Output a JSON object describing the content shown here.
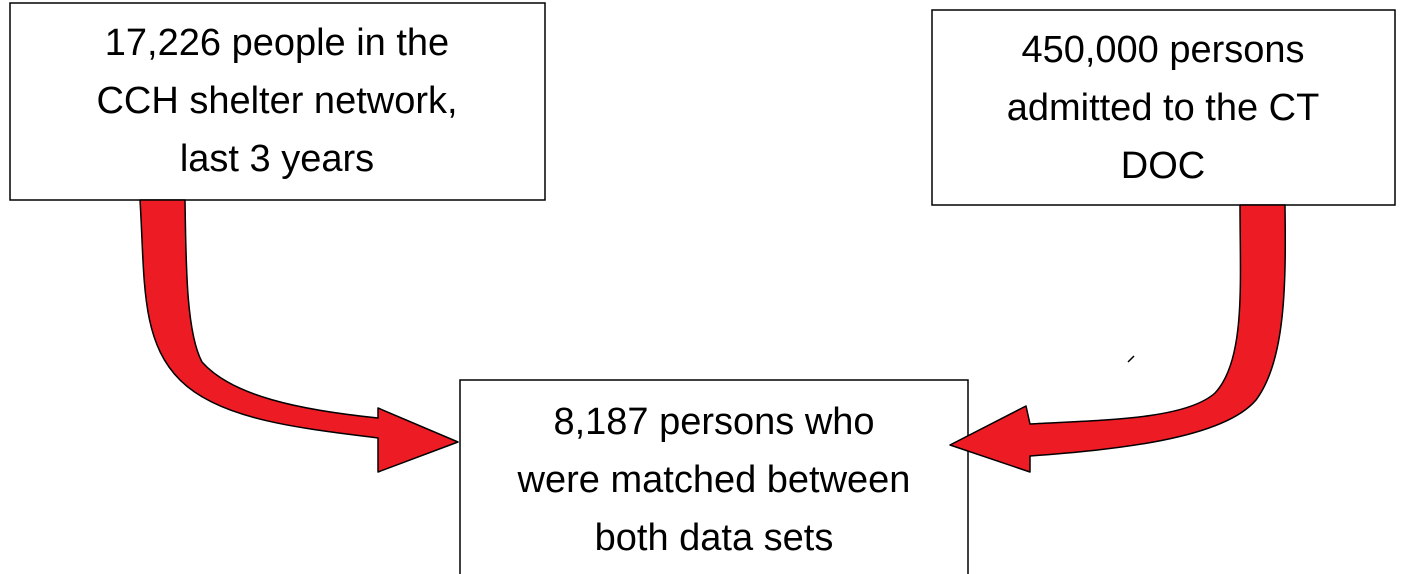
{
  "nodes": [
    {
      "lines": [
        "17,226 people in the",
        "CCH shelter network,",
        "last 3 years"
      ]
    },
    {
      "lines": [
        "450,000 persons",
        "admitted to the CT",
        "DOC"
      ]
    },
    {
      "lines": [
        "8,187 persons who",
        "were matched between",
        "both data sets"
      ]
    }
  ]
}
